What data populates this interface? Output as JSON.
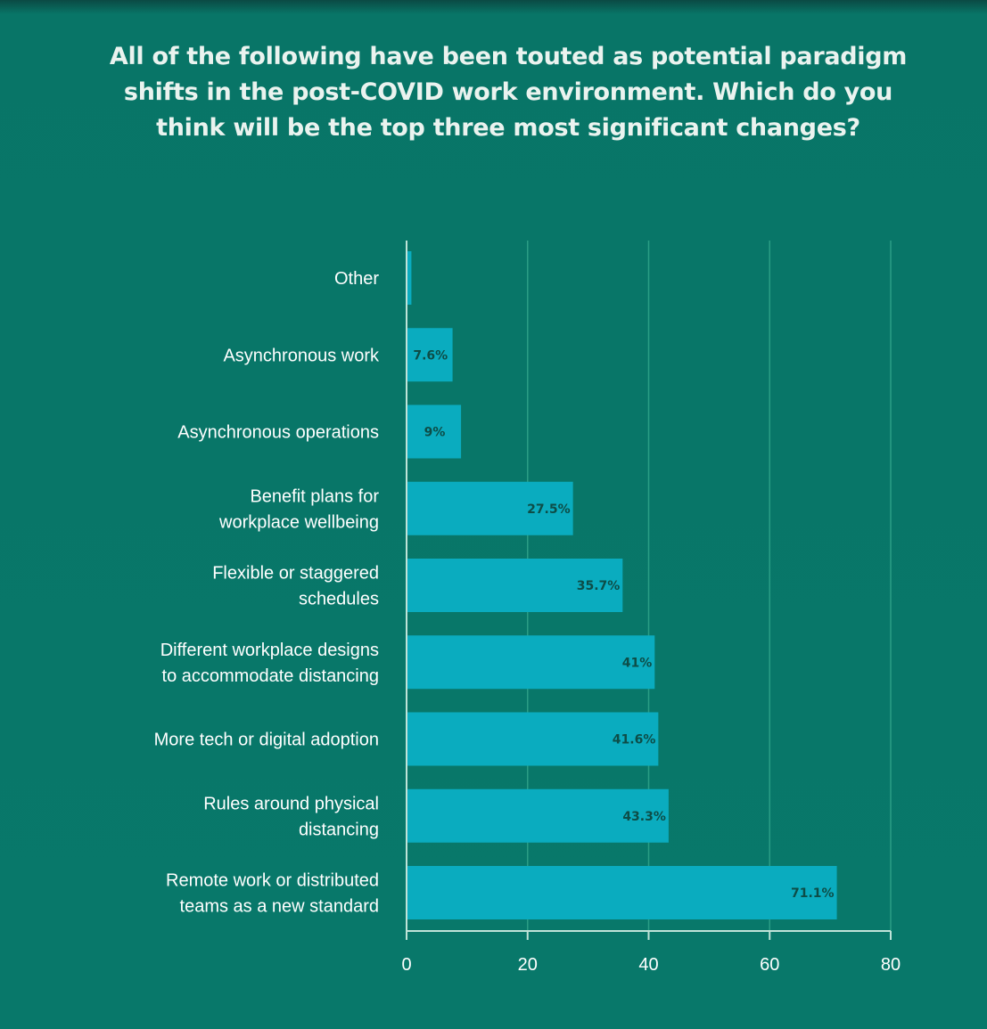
{
  "title": "All of the following have been touted as potential paradigm shifts in the post-COVID work environment. Which do you think will be the top three most significant changes?",
  "chart_data": {
    "type": "bar",
    "orientation": "horizontal",
    "categories": [
      [
        "Other"
      ],
      [
        "Asynchronous work"
      ],
      [
        "Asynchronous operations"
      ],
      [
        "Benefit plans for",
        "workplace wellbeing"
      ],
      [
        "Flexible or staggered",
        "schedules"
      ],
      [
        "Different workplace designs",
        "to accommodate distancing"
      ],
      [
        "More tech or digital adoption"
      ],
      [
        "Rules around physical",
        "distancing"
      ],
      [
        "Remote work or distributed",
        "teams as a new standard"
      ]
    ],
    "values": [
      0.8,
      7.6,
      9,
      27.5,
      35.7,
      41,
      41.6,
      43.3,
      71.1
    ],
    "value_labels": [
      "",
      "7.6%",
      "9%",
      "27.5%",
      "35.7%",
      "41%",
      "41.6%",
      "43.3%",
      "71.1%"
    ],
    "xlim": [
      0,
      80
    ],
    "xticks": [
      0,
      20,
      40,
      60,
      80
    ],
    "grid": true,
    "colors": {
      "bar": "#0aacbf",
      "gridline": "#2a9d85",
      "axis": "#bfe3d8",
      "background": "#08786a"
    }
  }
}
